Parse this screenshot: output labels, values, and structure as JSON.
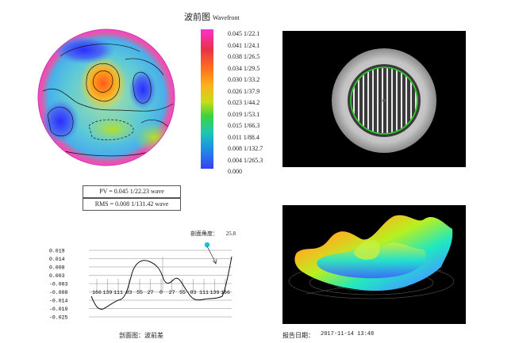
{
  "header": {
    "title_cn": "波前图",
    "title_en": "Wavefront"
  },
  "colorbar": {
    "labels": [
      "0.045 1/22.1",
      "0.041 1/24.1",
      "0.038 1/26.5",
      "0.034 1/29.5",
      "0.030 1/33.2",
      "0.026 1/37.9",
      "0.023 1/44.2",
      "0.019 1/53.1",
      "0.015 1/66.3",
      "0.011 1/88.4",
      "0.008 1/132.7",
      "0.004 1/265.3",
      "0.000"
    ]
  },
  "stats": {
    "pv": "PV = 0.045  1/22.23  wave",
    "rms": "RMS = 0.008  1/131.42  wave"
  },
  "profile": {
    "angle_label": "剖面角度：",
    "angle_value": "25.8",
    "y_labels": [
      "0.019",
      "0.014",
      "0.008",
      "0.003",
      "-0.003",
      "-0.008",
      "-0.014",
      "-0.019",
      "-0.025"
    ],
    "x_labels": [
      "166",
      "139",
      "111",
      "83",
      "55",
      "27",
      "0",
      "27",
      "55",
      "83",
      "111",
      "139",
      "166"
    ],
    "caption": "剖面图：波前差"
  },
  "footer": {
    "date_label": "报告日期：",
    "date_value": "2017-11-14  13:48"
  }
}
